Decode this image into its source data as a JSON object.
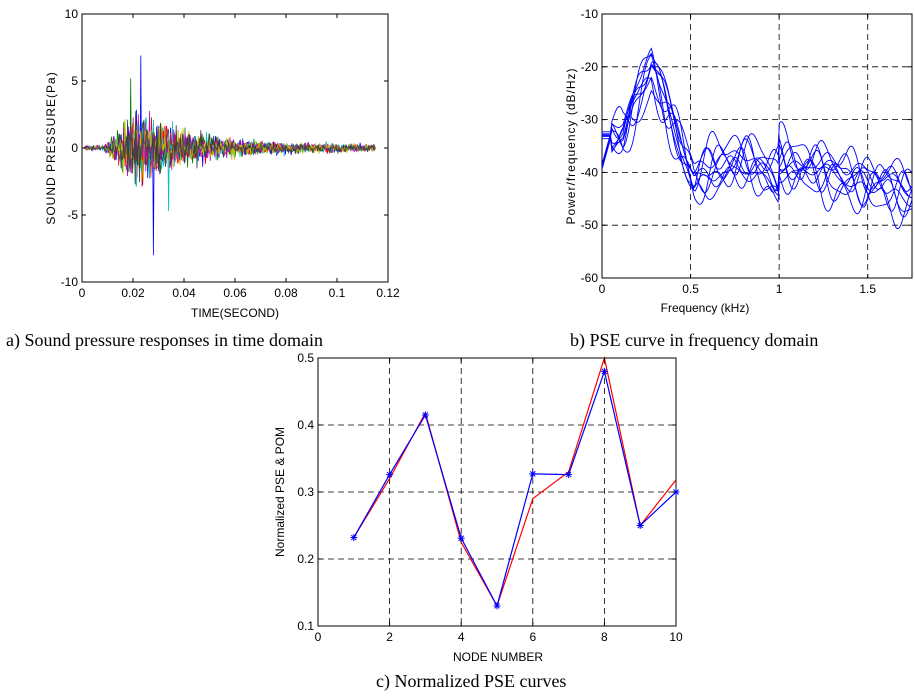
{
  "charts": [
    {
      "type": "line",
      "caption": "a) Sound pressure responses in time domain",
      "xlabel": "TIME(SECOND)",
      "ylabel": "SOUND PRESSURE(Pa)",
      "xlim": [
        0,
        0.12
      ],
      "ylim": [
        -10,
        10
      ],
      "xticks": [
        "0",
        "0.02",
        "0.04",
        "0.06",
        "0.08",
        "0.1",
        "0.12"
      ],
      "yticks": [
        "10",
        "5",
        "0",
        "-5",
        "-10"
      ],
      "grid": false,
      "series_colors": [
        "#0000ff",
        "#008000",
        "#ff0000",
        "#00bfbf",
        "#bf00bf",
        "#bfbf00",
        "#404040"
      ],
      "signal": {
        "x_end": 0.115,
        "samples": 460,
        "onset": 0.008,
        "peak_time": 0.022,
        "peak_amplitude": 4.5,
        "tail_amplitude": 0.4,
        "spikes": [
          {
            "x": 0.023,
            "y": 6.9,
            "series": 0
          },
          {
            "x": 0.028,
            "y": -8.0,
            "series": 0
          },
          {
            "x": 0.019,
            "y": 5.2,
            "series": 1
          },
          {
            "x": 0.034,
            "y": -4.7,
            "series": 3
          }
        ]
      }
    },
    {
      "type": "line",
      "caption": "b) PSE curve in frequency domain",
      "xlabel": "Frequency (kHz)",
      "ylabel": "Power/frequency (dB/Hz)",
      "xlim": [
        0,
        1.75
      ],
      "ylim": [
        -60,
        -10
      ],
      "xticks": [
        "0",
        "0.5",
        "1",
        "1.5"
      ],
      "yticks": [
        "-10",
        "-20",
        "-30",
        "-40",
        "-50",
        "-60"
      ],
      "grid": true,
      "series_color": "#0000ff",
      "series_count": 10,
      "curve_shape": {
        "start_level": -33,
        "peak_freq": 0.28,
        "peak_level": -21,
        "dip_freq": 0.52,
        "dip_level": -42,
        "mid_level": -38,
        "tail_level": -44
      }
    },
    {
      "type": "line",
      "caption": "c) Normalized PSE curves",
      "xlabel": "NODE NUMBER",
      "ylabel": "Normalized PSE & POM",
      "xlim": [
        0,
        10
      ],
      "ylim": [
        0.1,
        0.5
      ],
      "xticks": [
        "0",
        "2",
        "4",
        "6",
        "8",
        "10"
      ],
      "yticks": [
        "0.5",
        "0.4",
        "0.3",
        "0.2",
        "0.1"
      ],
      "grid": true,
      "x": [
        1,
        2,
        3,
        4,
        5,
        6,
        7,
        8,
        9,
        10
      ],
      "series": [
        {
          "name": "",
          "color": "#0000ff",
          "marker": "*",
          "values": [
            0.232,
            0.326,
            0.415,
            0.231,
            0.13,
            0.327,
            0.326,
            0.48,
            0.25,
            0.3
          ]
        },
        {
          "name": "",
          "color": "#ff0000",
          "values": [
            0.232,
            0.32,
            0.418,
            0.225,
            0.13,
            0.29,
            0.33,
            0.5,
            0.25,
            0.318
          ]
        }
      ]
    }
  ]
}
